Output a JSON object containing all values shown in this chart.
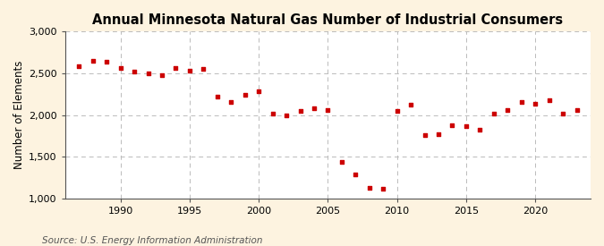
{
  "title": "Annual Minnesota Natural Gas Number of Industrial Consumers",
  "ylabel": "Number of Elements",
  "source": "Source: U.S. Energy Information Administration",
  "years": [
    1987,
    1988,
    1989,
    1990,
    1991,
    1992,
    1993,
    1994,
    1995,
    1996,
    1997,
    1998,
    1999,
    2000,
    2001,
    2002,
    2003,
    2004,
    2005,
    2006,
    2007,
    2008,
    2009,
    2010,
    2011,
    2012,
    2013,
    2014,
    2015,
    2016,
    2017,
    2018,
    2019,
    2020,
    2021,
    2022,
    2023
  ],
  "values": [
    2580,
    2650,
    2640,
    2560,
    2520,
    2500,
    2480,
    2560,
    2530,
    2550,
    2220,
    2160,
    2240,
    2290,
    2020,
    2000,
    2050,
    2080,
    2060,
    1440,
    1290,
    1130,
    1120,
    2050,
    2120,
    1760,
    1770,
    1880,
    1870,
    1820,
    2020,
    2060,
    2160,
    2130,
    2180,
    2020,
    2060
  ],
  "marker_color": "#cc0000",
  "marker_size": 12,
  "figure_background": "#fdf3e0",
  "plot_background": "#ffffff",
  "grid_color": "#bbbbbb",
  "spine_color": "#555555",
  "ylim": [
    1000,
    3000
  ],
  "xlim": [
    1986,
    2024
  ],
  "yticks": [
    1000,
    1500,
    2000,
    2500,
    3000
  ],
  "ytick_labels": [
    "1,000",
    "1,500",
    "2,000",
    "2,500",
    "3,000"
  ],
  "xticks": [
    1990,
    1995,
    2000,
    2005,
    2010,
    2015,
    2020
  ],
  "title_fontsize": 10.5,
  "label_fontsize": 8.5,
  "tick_fontsize": 8,
  "source_fontsize": 7.5
}
